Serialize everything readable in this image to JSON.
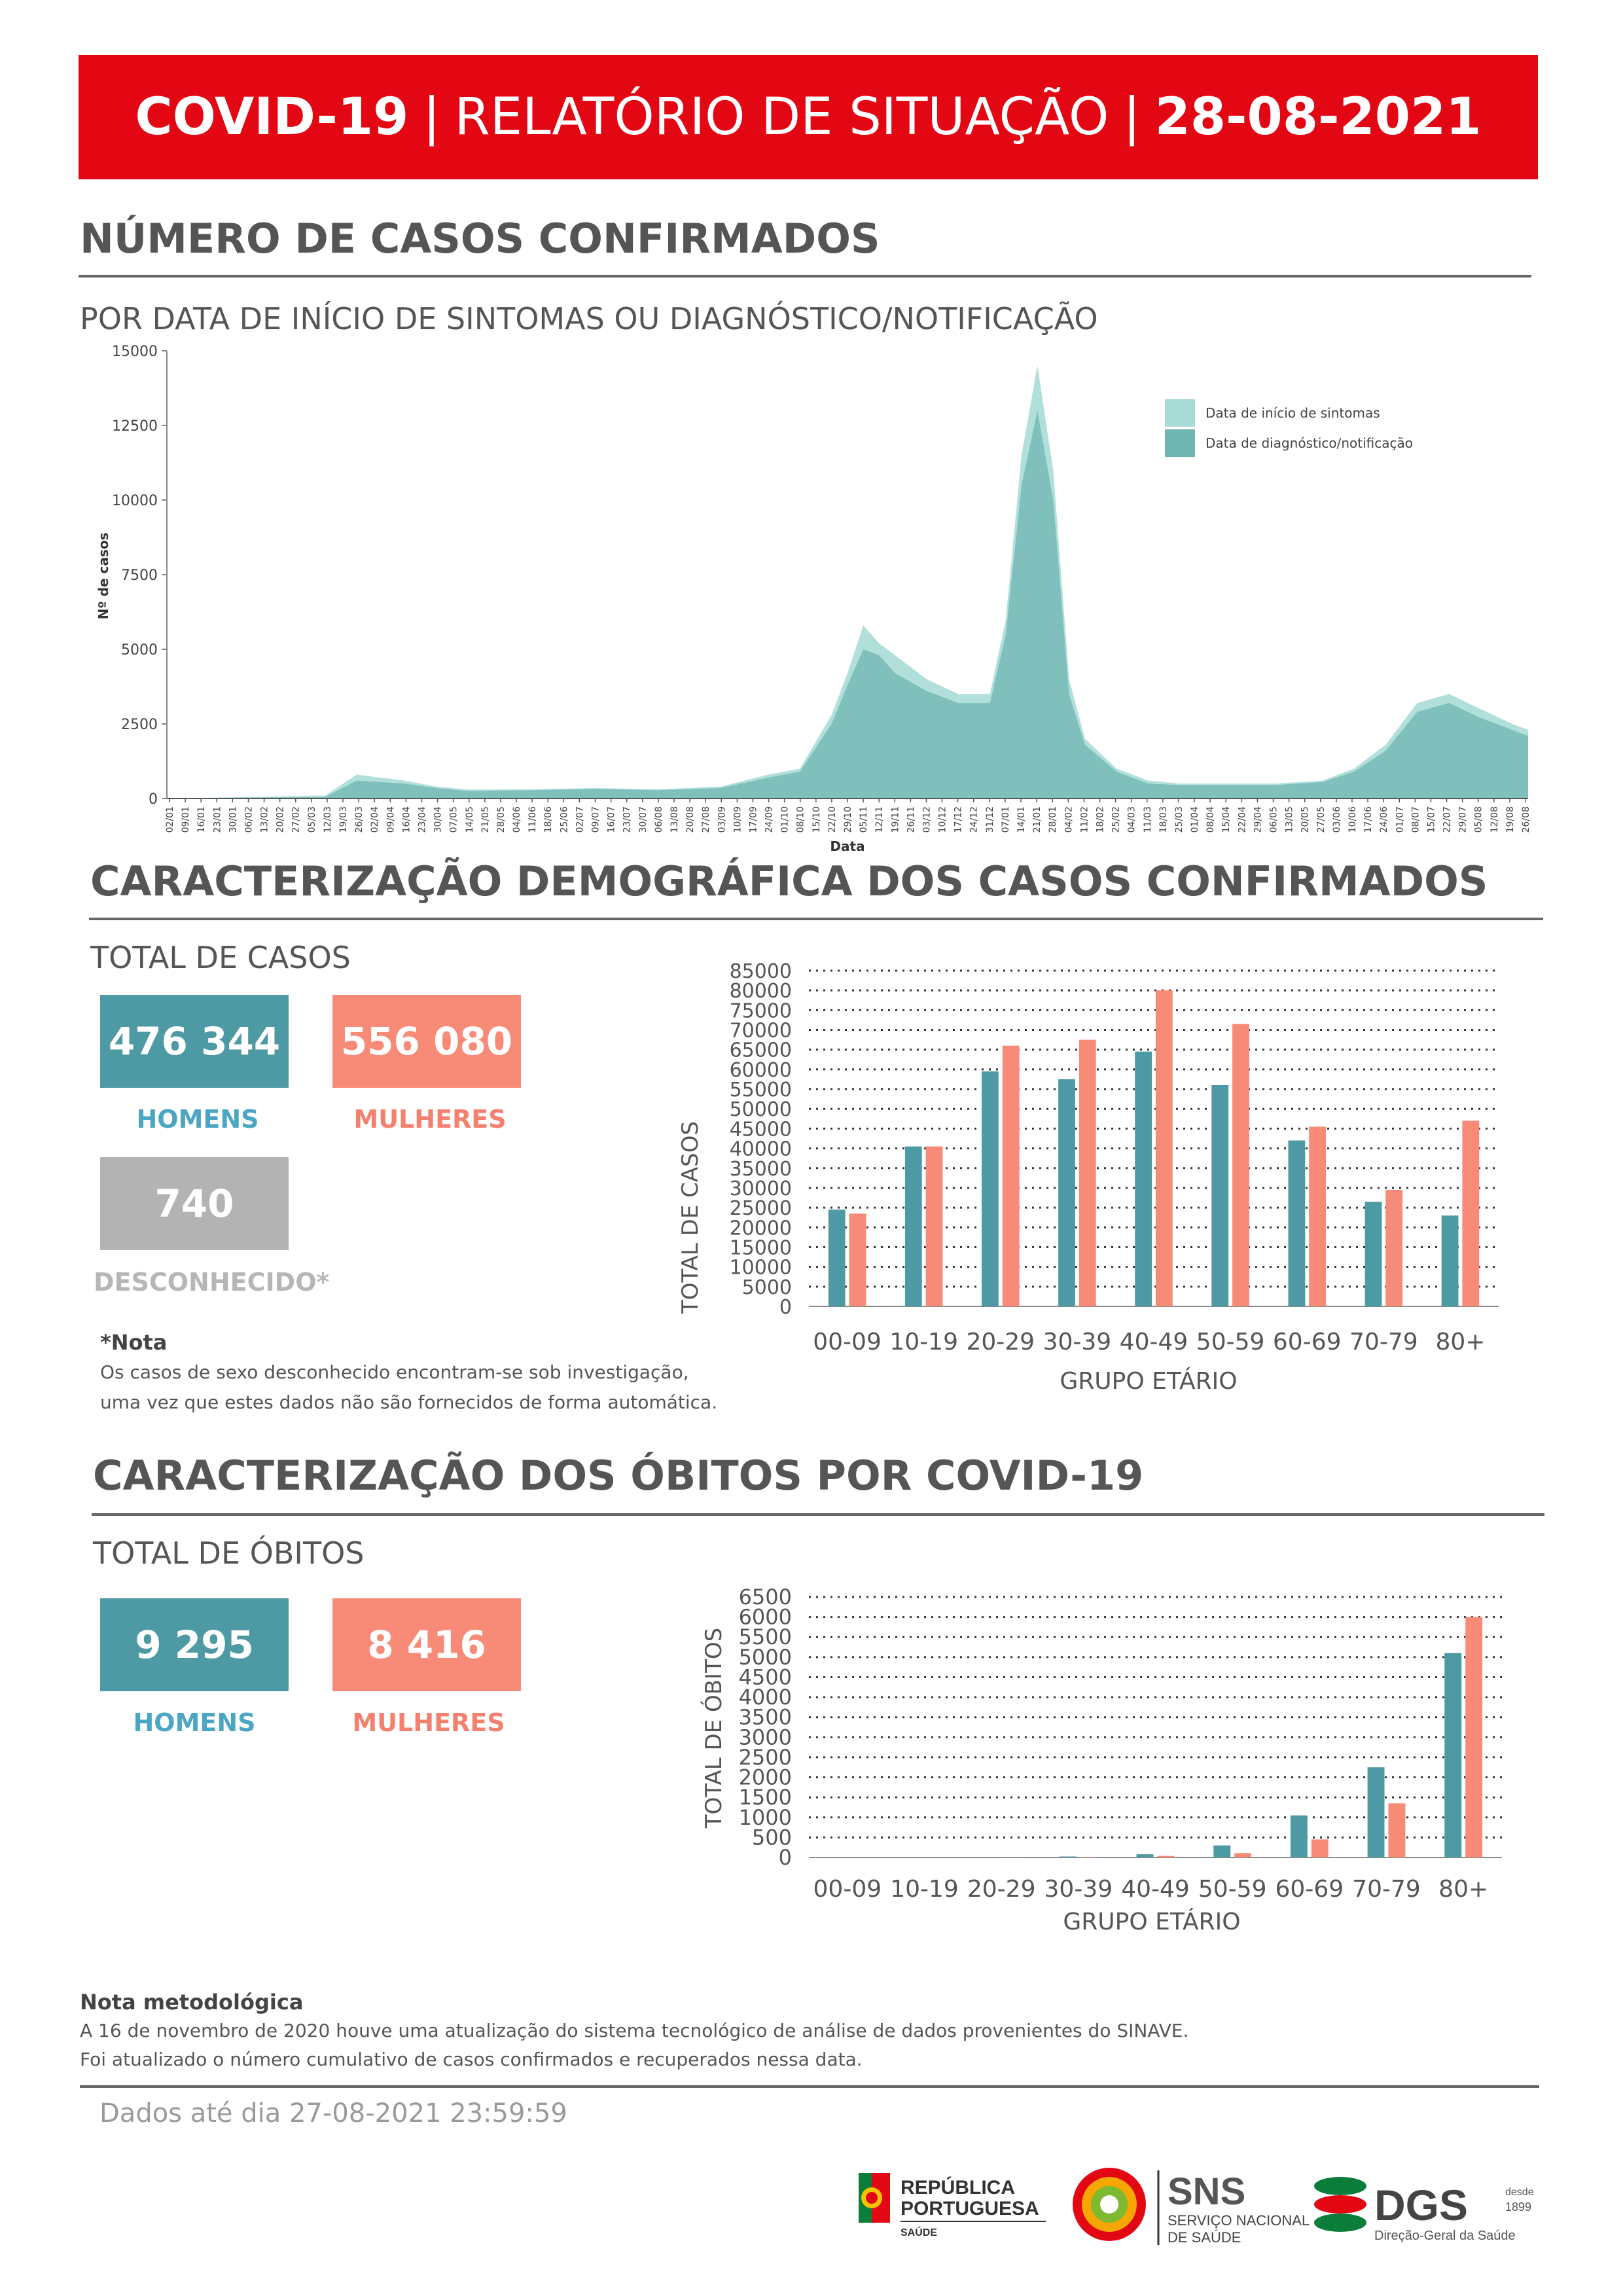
{
  "banner": {
    "part1": "COVID-19",
    "sep1": "|",
    "part2": "RELATÓRIO DE SITUAÇÃO",
    "sep2": "|",
    "date": "28-08-2021"
  },
  "section1": {
    "title": "NÚMERO DE CASOS CONFIRMADOS",
    "subtitle": "POR DATA DE INÍCIO DE SINTOMAS OU DIAGNÓSTICO/NOTIFICAÇÃO"
  },
  "timeline": {
    "ylabel": "Nº de casos",
    "xlabel": "Data",
    "yticks": [
      "0",
      "2500",
      "5000",
      "7500",
      "10000",
      "12500",
      "15000"
    ],
    "legend": [
      "Data de início de sintomas",
      "Data de diagnóstico/notificação"
    ],
    "colors": {
      "symptoms": "#a9dbd6",
      "diagnosis": "#6fb6b1"
    },
    "xticks": [
      "02/01",
      "09/01",
      "16/01",
      "23/01",
      "30/01",
      "06/02",
      "13/02",
      "20/02",
      "27/02",
      "05/03",
      "12/03",
      "19/03",
      "26/03",
      "02/04",
      "09/04",
      "16/04",
      "23/04",
      "30/04",
      "07/05",
      "14/05",
      "21/05",
      "28/05",
      "04/06",
      "11/06",
      "18/06",
      "25/06",
      "02/07",
      "09/07",
      "16/07",
      "23/07",
      "30/07",
      "06/08",
      "13/08",
      "20/08",
      "27/08",
      "03/09",
      "10/09",
      "17/09",
      "24/09",
      "01/10",
      "08/10",
      "15/10",
      "22/10",
      "29/10",
      "05/11",
      "12/11",
      "19/11",
      "26/11",
      "03/12",
      "10/12",
      "17/12",
      "24/12",
      "31/12",
      "07/01",
      "14/01",
      "21/01",
      "28/01",
      "04/02",
      "11/02",
      "18/02",
      "25/02",
      "04/03",
      "11/03",
      "18/03",
      "25/03",
      "01/04",
      "08/04",
      "15/04",
      "22/04",
      "29/04",
      "06/05",
      "13/05",
      "20/05",
      "27/05",
      "03/06",
      "10/06",
      "17/06",
      "24/06",
      "01/07",
      "08/07",
      "15/07",
      "22/07",
      "29/07",
      "05/08",
      "12/08",
      "19/08",
      "26/08"
    ]
  },
  "section2": {
    "title": "CARACTERIZAÇÃO DEMOGRÁFICA DOS CASOS CONFIRMADOS",
    "total_label": "TOTAL DE CASOS",
    "men_value": "476 344",
    "men_label": "HOMENS",
    "women_value": "556 080",
    "women_label": "MULHERES",
    "unknown_value": "740",
    "unknown_label": "DESCONHECIDO*",
    "note_title": "*Nota",
    "note_line1": "Os casos de sexo desconhecido encontram-se sob investigação,",
    "note_line2": "uma vez que estes dados não são fornecidos de forma automática."
  },
  "section3": {
    "title": "CARACTERIZAÇÃO DOS ÓBITOS POR COVID-19",
    "total_label": "TOTAL DE ÓBITOS",
    "men_value": "9 295",
    "men_label": "HOMENS",
    "women_value": "8 416",
    "women_label": "MULHERES"
  },
  "chart_data": [
    {
      "type": "area",
      "title": "",
      "xlabel": "Data",
      "ylabel": "Nº de casos",
      "ylim": [
        0,
        15000
      ],
      "grid": false,
      "legend_position": "top-right",
      "x": [
        "02/01/2020",
        "12/03/2020",
        "26/03/2020",
        "16/04/2020",
        "30/04/2020",
        "14/05/2020",
        "11/06/2020",
        "09/07/2020",
        "06/08/2020",
        "03/09/2020",
        "24/09/2020",
        "08/10/2020",
        "22/10/2020",
        "29/10/2020",
        "05/11/2020",
        "12/11/2020",
        "19/11/2020",
        "03/12/2020",
        "17/12/2020",
        "31/12/2020",
        "07/01/2021",
        "14/01/2021",
        "21/01/2021",
        "28/01/2021",
        "04/02/2021",
        "11/02/2021",
        "25/02/2021",
        "11/03/2021",
        "25/03/2021",
        "15/04/2021",
        "06/05/2021",
        "27/05/2021",
        "10/06/2021",
        "24/06/2021",
        "08/07/2021",
        "22/07/2021",
        "05/08/2021",
        "19/08/2021",
        "26/08/2021"
      ],
      "series": [
        {
          "name": "Data de início de sintomas",
          "values": [
            0,
            100,
            800,
            600,
            400,
            300,
            300,
            350,
            300,
            400,
            800,
            1000,
            2800,
            4200,
            5800,
            5200,
            4800,
            4000,
            3500,
            3500,
            6000,
            11500,
            14500,
            11000,
            4000,
            2000,
            1000,
            600,
            500,
            500,
            500,
            600,
            1000,
            1800,
            3200,
            3500,
            3000,
            2500,
            2300
          ]
        },
        {
          "name": "Data de diagnóstico/notificação",
          "values": [
            0,
            50,
            600,
            500,
            350,
            250,
            280,
            320,
            280,
            350,
            700,
            900,
            2500,
            3800,
            5000,
            4800,
            4200,
            3600,
            3200,
            3200,
            5500,
            10500,
            13000,
            10000,
            3500,
            1800,
            900,
            500,
            450,
            450,
            450,
            550,
            900,
            1600,
            2900,
            3200,
            2700,
            2300,
            2100
          ]
        }
      ]
    },
    {
      "type": "bar",
      "title": "",
      "xlabel": "GRUPO ETÁRIO",
      "ylabel": "TOTAL DE CASOS",
      "ylim": [
        0,
        85000
      ],
      "yticks": [
        "0",
        "5000",
        "10000",
        "15000",
        "20000",
        "25000",
        "30000",
        "35000",
        "40000",
        "45000",
        "50000",
        "55000",
        "60000",
        "65000",
        "70000",
        "75000",
        "80000",
        "85000"
      ],
      "categories": [
        "00-09",
        "10-19",
        "20-29",
        "30-39",
        "40-49",
        "50-59",
        "60-69",
        "70-79",
        "80+"
      ],
      "series": [
        {
          "values": [
            24500,
            40500,
            59500,
            57500,
            64500,
            56000,
            42000,
            26500,
            23000
          ],
          "color": "#4e9aa4"
        },
        {
          "values": [
            23500,
            40500,
            66000,
            67500,
            80000,
            71500,
            45500,
            29500,
            47000
          ],
          "color": "#f88a78"
        }
      ]
    },
    {
      "type": "bar",
      "title": "",
      "xlabel": "GRUPO ETÁRIO",
      "ylabel": "TOTAL DE ÓBITOS",
      "ylim": [
        0,
        6500
      ],
      "yticks": [
        "0",
        "500",
        "1000",
        "1500",
        "2000",
        "2500",
        "3000",
        "3500",
        "4000",
        "4500",
        "5000",
        "5500",
        "6000",
        "6500"
      ],
      "categories": [
        "00-09",
        "10-19",
        "20-29",
        "30-39",
        "40-49",
        "50-59",
        "60-69",
        "70-79",
        "80+"
      ],
      "series": [
        {
          "values": [
            2,
            2,
            10,
            25,
            80,
            300,
            1050,
            2250,
            5100
          ],
          "color": "#4e9aa4"
        },
        {
          "values": [
            1,
            2,
            5,
            15,
            40,
            110,
            450,
            1350,
            6000
          ],
          "color": "#f88a78"
        }
      ]
    }
  ],
  "method_note": {
    "title": "Nota metodológica",
    "line1": "A 16 de novembro de 2020 houve uma atualização do sistema tecnológico de análise de dados provenientes do SINAVE.",
    "line2": "Foi atualizado o número cumulativo de casos confirmados e recuperados nessa data."
  },
  "footer": {
    "data_until": "Dados até dia 27-08-2021 23:59:59"
  },
  "logos": {
    "rp": {
      "l1": "REPÚBLICA",
      "l2": "PORTUGUESA",
      "l3": "SAÚDE"
    },
    "sns": {
      "name": "SNS",
      "l1": "SERVIÇO NACIONAL",
      "l2": "DE SAÚDE"
    },
    "dgs": {
      "name": "DGS",
      "since1": "desde",
      "since2": "1899",
      "sub": "Direção-Geral da Saúde"
    }
  }
}
